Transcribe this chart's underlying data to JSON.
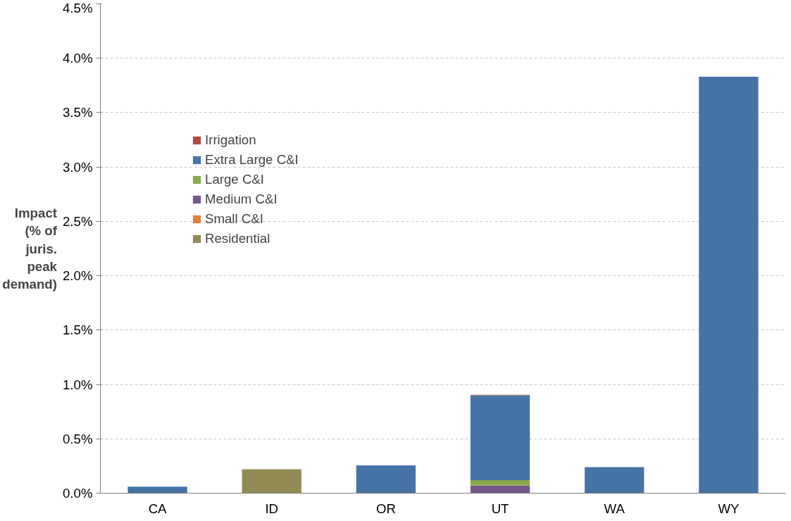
{
  "chart_data": {
    "type": "bar",
    "stacked": true,
    "ylabel": "Impact\n(% of\njuris.\npeak\ndemand)",
    "categories": [
      "CA",
      "ID",
      "OR",
      "UT",
      "WA",
      "WY"
    ],
    "series": [
      {
        "name": "Residential",
        "color": "#948a54",
        "values": [
          0,
          0.22,
          0,
          0,
          0,
          0
        ]
      },
      {
        "name": "Small C&I",
        "color": "#e0823b",
        "values": [
          0,
          0,
          0,
          0,
          0,
          0
        ]
      },
      {
        "name": "Medium C&I",
        "color": "#76588f",
        "values": [
          0,
          0,
          0,
          0.07,
          0,
          0
        ]
      },
      {
        "name": "Large C&I",
        "color": "#8aa94c",
        "values": [
          0,
          0,
          0,
          0.05,
          0,
          0
        ]
      },
      {
        "name": "Extra Large C&I",
        "color": "#4573a7",
        "values": [
          0.06,
          0,
          0.255,
          0.78,
          0.24,
          3.83
        ]
      },
      {
        "name": "Irrigation",
        "color": "#b04a47",
        "values": [
          0,
          0,
          0,
          0.005,
          0,
          0
        ]
      }
    ],
    "ylim": [
      0,
      4.5
    ],
    "yticks": [
      {
        "value": 0,
        "label": "0.0%"
      },
      {
        "value": 0.5,
        "label": "0.5%"
      },
      {
        "value": 1,
        "label": "1.0%"
      },
      {
        "value": 1.5,
        "label": "1.5%"
      },
      {
        "value": 2,
        "label": "2.0%"
      },
      {
        "value": 2.5,
        "label": "2.5%"
      },
      {
        "value": 3,
        "label": "3.0%"
      },
      {
        "value": 3.5,
        "label": "3.5%"
      },
      {
        "value": 4,
        "label": "4.0%"
      },
      {
        "value": 4.5,
        "label": "4.5%"
      }
    ],
    "grid": "y",
    "legend": "top left"
  }
}
